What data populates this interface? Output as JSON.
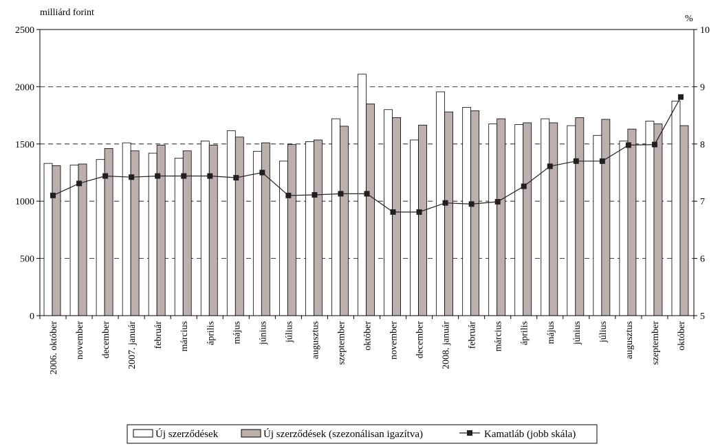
{
  "chart_data": {
    "type": "bar",
    "left_unit_label": "milliárd forint",
    "right_unit_label": "%",
    "categories": [
      "2006. október",
      "november",
      "december",
      "2007. január",
      "február",
      "március",
      "április",
      "május",
      "június",
      "július",
      "augusztus",
      "szeptember",
      "október",
      "november",
      "december",
      "2008. január",
      "február",
      "március",
      "április",
      "május",
      "június",
      "július",
      "augusztus",
      "szeptember",
      "október"
    ],
    "series": [
      {
        "name": "Új szerződések",
        "axis": "left",
        "kind": "bar",
        "color": "#ffffff",
        "values": [
          1330,
          1315,
          1365,
          1510,
          1420,
          1375,
          1525,
          1615,
          1435,
          1350,
          1520,
          1720,
          2110,
          1800,
          1535,
          1955,
          1820,
          1675,
          1670,
          1720,
          1660,
          1575,
          1525,
          1700,
          1875
        ]
      },
      {
        "name": "Új szerződések (szezonálisan igazítva)",
        "axis": "right_bar",
        "kind": "bar",
        "color": "#bcafac",
        "values": [
          1310,
          1325,
          1460,
          1440,
          1490,
          1440,
          1490,
          1560,
          1510,
          1495,
          1535,
          1655,
          1850,
          1730,
          1665,
          1780,
          1790,
          1720,
          1685,
          1685,
          1730,
          1715,
          1630,
          1675,
          1660
        ]
      },
      {
        "name": "Kamatláb (jobb skála)",
        "axis": "right",
        "kind": "line",
        "color": "#231f20",
        "values": [
          7.1,
          7.31,
          7.44,
          7.42,
          7.44,
          7.44,
          7.44,
          7.41,
          7.5,
          7.1,
          7.11,
          7.13,
          7.13,
          6.81,
          6.81,
          6.97,
          6.95,
          6.99,
          7.26,
          7.61,
          7.7,
          7.7,
          7.98,
          7.99,
          8.82
        ]
      }
    ],
    "left_axis": {
      "ylim": [
        0,
        2500
      ],
      "ticks": [
        0,
        500,
        1000,
        1500,
        2000,
        2500
      ]
    },
    "right_axis": {
      "ylim": [
        5,
        10
      ],
      "ticks": [
        5,
        6,
        7,
        8,
        9,
        10
      ]
    },
    "grid": "dashed horizontal",
    "legend_position": "bottom"
  }
}
